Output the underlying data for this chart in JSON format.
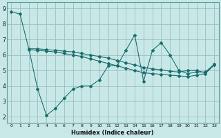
{
  "xlabel": "Humidex (Indice chaleur)",
  "background_color": "#c8e8e8",
  "grid_color": "#9dbfbf",
  "line_color": "#1a6e6e",
  "xlim": [
    -0.5,
    23.5
  ],
  "ylim": [
    1.6,
    9.4
  ],
  "xticks": [
    0,
    1,
    2,
    3,
    4,
    5,
    6,
    7,
    8,
    9,
    10,
    11,
    12,
    13,
    14,
    15,
    16,
    17,
    18,
    19,
    20,
    21,
    22,
    23
  ],
  "yticks": [
    2,
    3,
    4,
    5,
    6,
    7,
    8,
    9
  ],
  "series": [
    {
      "x": [
        0,
        1,
        2,
        3,
        4,
        5,
        6,
        7,
        8,
        9,
        10,
        11,
        12,
        13,
        14,
        15,
        16,
        17,
        18,
        19,
        20,
        21,
        22,
        23
      ],
      "y": [
        8.8,
        8.65,
        6.4,
        3.8,
        2.1,
        2.55,
        3.2,
        3.8,
        4.0,
        4.0,
        4.4,
        5.3,
        5.3,
        6.3,
        7.3,
        4.3,
        6.3,
        6.8,
        6.0,
        5.0,
        4.8,
        4.9,
        4.9,
        5.4
      ]
    },
    {
      "x": [
        2,
        3,
        4,
        5,
        6,
        7,
        8,
        9,
        10,
        11,
        12,
        13,
        14,
        15,
        16,
        17,
        18,
        19,
        20,
        21,
        22,
        23
      ],
      "y": [
        6.4,
        6.4,
        6.35,
        6.3,
        6.25,
        6.2,
        6.1,
        6.0,
        5.9,
        5.8,
        5.65,
        5.5,
        5.35,
        5.2,
        5.1,
        5.05,
        4.95,
        4.9,
        5.0,
        5.0,
        4.85,
        5.4
      ]
    },
    {
      "x": [
        2,
        3,
        4,
        5,
        6,
        7,
        8,
        9,
        10,
        11,
        12,
        13,
        14,
        15,
        16,
        17,
        18,
        19,
        20,
        21,
        22,
        23
      ],
      "y": [
        6.35,
        6.3,
        6.25,
        6.2,
        6.1,
        6.0,
        5.9,
        5.75,
        5.6,
        5.45,
        5.3,
        5.15,
        5.0,
        4.85,
        4.8,
        4.75,
        4.7,
        4.65,
        4.6,
        4.7,
        4.8,
        5.35
      ]
    }
  ]
}
